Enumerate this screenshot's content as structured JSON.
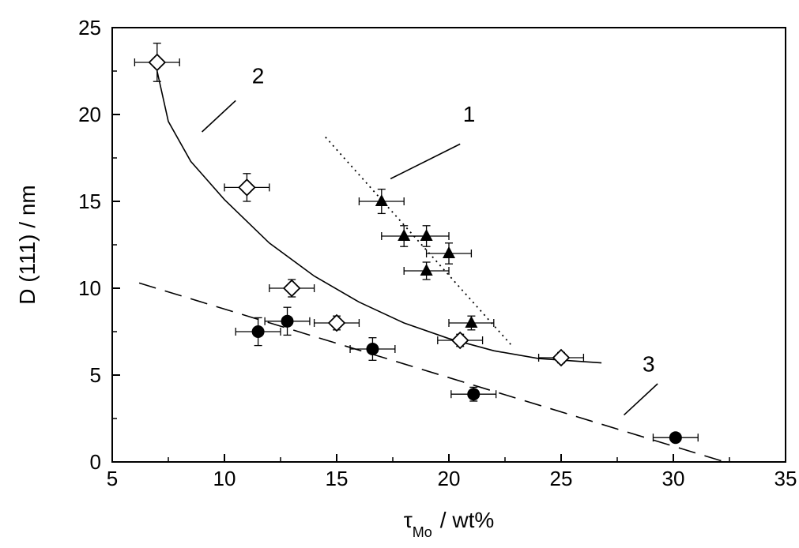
{
  "chart_data": {
    "type": "scatter",
    "title": "",
    "xlabel": {
      "main": "τ",
      "sub": "Mo",
      "unit": "/ wt%"
    },
    "ylabel": "D (111) / nm",
    "xlim": [
      5,
      35
    ],
    "ylim": [
      0,
      25
    ],
    "xticks": [
      "5",
      "10",
      "15",
      "20",
      "25",
      "30",
      "35"
    ],
    "yticks": [
      "0",
      "5",
      "10",
      "15",
      "20",
      "25"
    ],
    "grid": false,
    "series": [
      {
        "marker": "triangle",
        "points": [
          {
            "x": 17,
            "y": 15,
            "xerr": 1,
            "yerr": 0.7
          },
          {
            "x": 18,
            "y": 13,
            "xerr": 1,
            "yerr": 0.6
          },
          {
            "x": 19,
            "y": 13,
            "xerr": 1,
            "yerr": 0.6
          },
          {
            "x": 20,
            "y": 12,
            "xerr": 1,
            "yerr": 0.6
          },
          {
            "x": 19,
            "y": 11,
            "xerr": 1,
            "yerr": 0.5
          },
          {
            "x": 21,
            "y": 8,
            "xerr": 1,
            "yerr": 0.4
          }
        ]
      },
      {
        "marker": "diamond",
        "points": [
          {
            "x": 7,
            "y": 23,
            "xerr": 1,
            "yerr": 1.1
          },
          {
            "x": 11,
            "y": 15.8,
            "xerr": 1,
            "yerr": 0.8
          },
          {
            "x": 13,
            "y": 10,
            "xerr": 1,
            "yerr": 0.5
          },
          {
            "x": 15,
            "y": 8,
            "xerr": 1,
            "yerr": 0.4
          },
          {
            "x": 20.5,
            "y": 7,
            "xerr": 1,
            "yerr": 0.35
          },
          {
            "x": 25,
            "y": 6,
            "xerr": 1,
            "yerr": 0.3
          }
        ]
      },
      {
        "marker": "circle",
        "points": [
          {
            "x": 11.5,
            "y": 7.5,
            "xerr": 1,
            "yerr": 0.8
          },
          {
            "x": 12.8,
            "y": 8.1,
            "xerr": 1,
            "yerr": 0.8
          },
          {
            "x": 16.6,
            "y": 6.5,
            "xerr": 1,
            "yerr": 0.65
          },
          {
            "x": 21.1,
            "y": 3.9,
            "xerr": 1,
            "yerr": 0.4
          },
          {
            "x": 30.1,
            "y": 1.4,
            "xerr": 1,
            "yerr": 0.2
          }
        ]
      }
    ],
    "curves": [
      {
        "style": "dotted",
        "points": [
          [
            14.5,
            18.7
          ],
          [
            22.8,
            6.7
          ]
        ]
      },
      {
        "style": "solid",
        "points": [
          [
            7,
            22.5
          ],
          [
            7.5,
            19.6
          ],
          [
            8.5,
            17.3
          ],
          [
            10,
            15.1
          ],
          [
            12,
            12.6
          ],
          [
            14,
            10.7
          ],
          [
            16,
            9.2
          ],
          [
            18,
            8.0
          ],
          [
            20,
            7.1
          ],
          [
            22,
            6.4
          ],
          [
            24,
            5.95
          ],
          [
            26.8,
            5.7
          ]
        ]
      },
      {
        "style": "dashed",
        "points": [
          [
            6.2,
            10.3
          ],
          [
            32.3,
            0.0
          ]
        ]
      }
    ],
    "annotations": [
      {
        "text": "1",
        "x": 20.9,
        "y": 19.6,
        "leader": [
          [
            20.5,
            18.3
          ],
          [
            17.4,
            16.3
          ]
        ]
      },
      {
        "text": "2",
        "x": 11.5,
        "y": 21.8,
        "leader": [
          [
            10.5,
            20.8
          ],
          [
            9.0,
            19.0
          ]
        ]
      },
      {
        "text": "3",
        "x": 28.9,
        "y": 5.2,
        "leader": [
          [
            29.3,
            4.5
          ],
          [
            27.8,
            2.7
          ]
        ]
      }
    ]
  }
}
